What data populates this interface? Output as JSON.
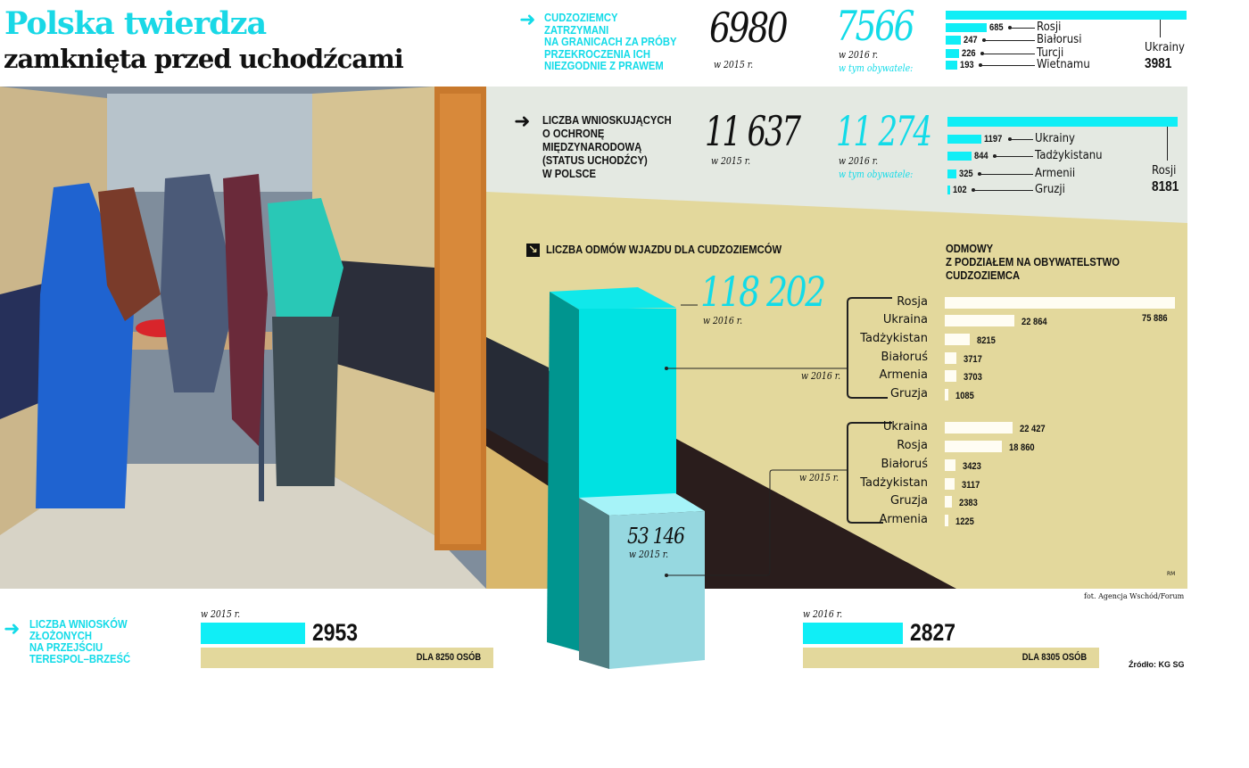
{
  "title": {
    "line1": "Polska twierdza",
    "line2": "zamknięta przed uchodźcami"
  },
  "detained": {
    "caption": [
      "CUDZOZIEMCY",
      "ZATRZYMANI",
      "NA GRANICACH ZA PRÓBY",
      "PRZEKROCZENIA ICH",
      "NIEZGODNIE Z PRAWEM"
    ],
    "value_2015": "6980",
    "label_2015": "w 2015 r.",
    "value_2016": "7566",
    "label_2016": "w 2016 r.",
    "citizens_label": "w tym obywatele:"
  },
  "applicants": {
    "caption": [
      "LICZBA WNIOSKUJĄCYCH",
      "O OCHRONĘ",
      "MIĘDZYNARODOWĄ",
      "(STATUS UCHODŹCY)",
      "W POLSCE"
    ],
    "value_2015": "11 637",
    "label_2015": "w 2015 r.",
    "value_2016": "11 274",
    "label_2016": "w 2016 r.",
    "citizens_label": "w tym obywatele:"
  },
  "refusals": {
    "heading": "LICZBA ODMÓW WJAZDU DLA CUDZOZIEMCÓW",
    "value_2016": "118 202",
    "label_2016": "w 2016 r.",
    "value_2015": "53 146",
    "label_2015": "w 2015 r.",
    "breakdown_title": [
      "ODMOWY",
      "Z PODZIAŁEM NA OBYWATELSTWO",
      "CUDZOZIEMCA"
    ],
    "bracket_2016": "w 2016 r.",
    "bracket_2015": "w 2015 r."
  },
  "terespol": {
    "caption": [
      "LICZBA WNIOSKÓW",
      "ZŁOŻONYCH",
      "NA PRZEJŚCIU",
      "TERESPOL–BRZEŚĆ"
    ],
    "y2015": {
      "label": "w 2015 r.",
      "value": "2953",
      "persons": "DLA 8250 OSÓB"
    },
    "y2016": {
      "label": "w 2016 r.",
      "value": "2827",
      "persons": "DLA 8305 OSÓB"
    }
  },
  "credits": {
    "photo": "fot. Agencja Wschód/Forum",
    "source": "Źródło: KG SG",
    "author": "RM"
  },
  "colors": {
    "accent": "#13dbe8",
    "beige": "#e3d89c",
    "panel": "#e4e9e2",
    "dark": "#2a1d1c"
  },
  "icons": [
    "arrow-right-icon",
    "arrow-down-right-icon"
  ],
  "chart_data": [
    {
      "type": "bar",
      "orientation": "horizontal",
      "categories": [
        "Ukrainy",
        "Rosji",
        "Białorusi",
        "Turcji",
        "Wietnamu"
      ],
      "values": [
        3981,
        685,
        247,
        226,
        193
      ]
    },
    {
      "type": "bar",
      "orientation": "horizontal",
      "categories": [
        "Rosji",
        "Ukrainy",
        "Tadżykistanu",
        "Armenii",
        "Gruzji"
      ],
      "values": [
        8181,
        1197,
        844,
        325,
        102
      ]
    },
    {
      "type": "bar",
      "orientation": "horizontal",
      "categories": [
        "Rosja",
        "Ukraina",
        "Tadżykistan",
        "Białoruś",
        "Armenia",
        "Gruzja"
      ],
      "values": [
        75886,
        22864,
        8215,
        3717,
        3703,
        1085
      ]
    },
    {
      "type": "bar",
      "orientation": "horizontal",
      "categories": [
        "Ukraina",
        "Rosja",
        "Białoruś",
        "Tadżykistan",
        "Gruzja",
        "Armenia"
      ],
      "values": [
        22427,
        18860,
        3423,
        3117,
        2383,
        1225
      ]
    },
    {
      "type": "bar",
      "orientation": "vertical",
      "categories": [
        "w 2016 r.",
        "w 2015 r."
      ],
      "values": [
        118202,
        53146
      ]
    },
    {
      "type": "bar",
      "orientation": "horizontal",
      "categories": [
        "w 2015 r.",
        "w 2016 r."
      ],
      "values": [
        2953,
        2827
      ]
    }
  ]
}
